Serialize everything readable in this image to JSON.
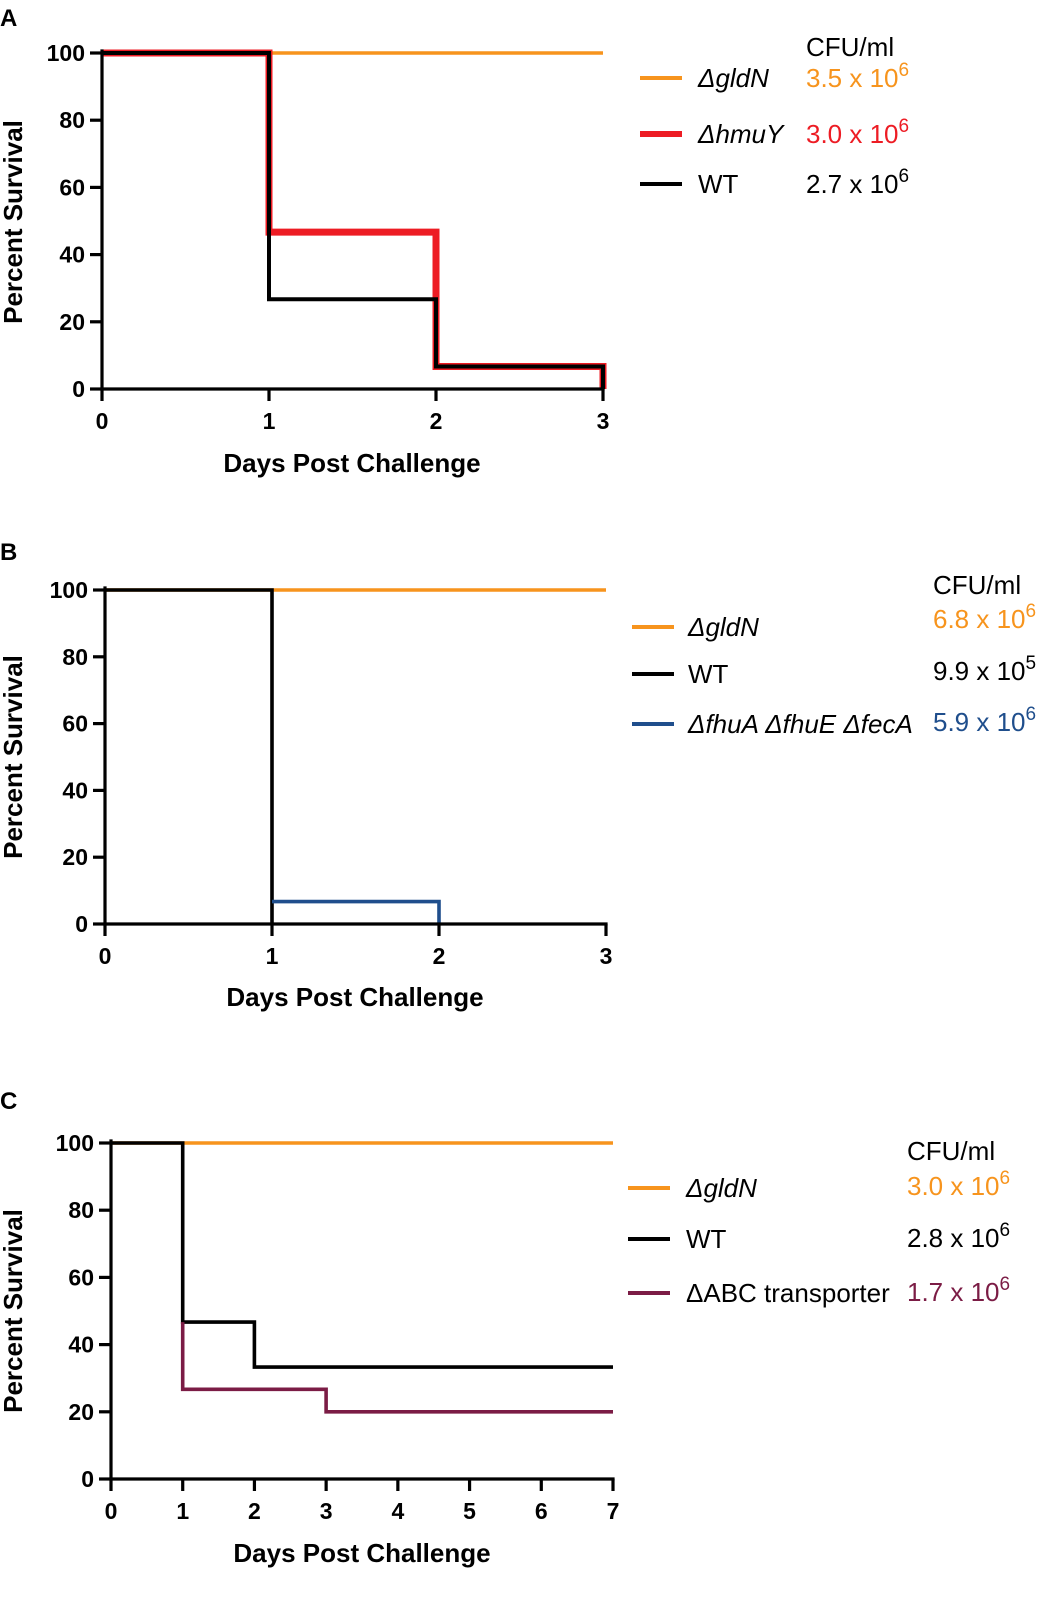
{
  "chart_data": [
    {
      "panel": "A",
      "type": "line",
      "subtype": "step-survival",
      "xlabel": "Days Post Challenge",
      "ylabel": "Percent Survival",
      "xlim": [
        0,
        3
      ],
      "ylim": [
        0,
        100
      ],
      "xticks": [
        "0",
        "1",
        "2",
        "3"
      ],
      "yticks": [
        "0",
        "20",
        "40",
        "60",
        "80",
        "100"
      ],
      "legend_header": "CFU/ml",
      "series": [
        {
          "name": "ΔgldN",
          "italic_part": "gldN",
          "cfu": "3.5 x 10",
          "cfu_exp": "6",
          "color": "#f7941d",
          "points": [
            [
              0,
              100
            ],
            [
              3,
              100
            ]
          ]
        },
        {
          "name": "ΔhmuY",
          "italic_part": "hmuY",
          "cfu": "3.0 x 10",
          "cfu_exp": "6",
          "color": "#ed1c24",
          "points": [
            [
              0,
              100
            ],
            [
              1,
              100
            ],
            [
              1,
              46.7
            ],
            [
              2,
              46.7
            ],
            [
              2,
              6.7
            ],
            [
              3,
              6.7
            ],
            [
              3,
              0
            ]
          ]
        },
        {
          "name": "WT",
          "italic_part": "",
          "cfu": "2.7 x 10",
          "cfu_exp": "6",
          "color": "#000000",
          "points": [
            [
              0,
              100
            ],
            [
              1,
              100
            ],
            [
              1,
              26.7
            ],
            [
              2,
              26.7
            ],
            [
              2,
              6.7
            ],
            [
              3,
              6.7
            ],
            [
              3,
              0
            ]
          ]
        }
      ]
    },
    {
      "panel": "B",
      "type": "line",
      "subtype": "step-survival",
      "xlabel": "Days Post Challenge",
      "ylabel": "Percent Survival",
      "xlim": [
        0,
        3
      ],
      "ylim": [
        0,
        100
      ],
      "xticks": [
        "0",
        "1",
        "2",
        "3"
      ],
      "yticks": [
        "0",
        "20",
        "40",
        "60",
        "80",
        "100"
      ],
      "legend_header": "CFU/ml",
      "series": [
        {
          "name": "ΔgldN",
          "italic_part": "gldN",
          "cfu": "6.8 x 10",
          "cfu_exp": "6",
          "color": "#f7941d",
          "points": [
            [
              0,
              100
            ],
            [
              3,
              100
            ]
          ]
        },
        {
          "name": "WT",
          "italic_part": "",
          "cfu": "9.9 x 10",
          "cfu_exp": "5",
          "color": "#000000",
          "points": [
            [
              0,
              100
            ],
            [
              1,
              100
            ],
            [
              1,
              0
            ]
          ]
        },
        {
          "name": "ΔfhuA ΔfhuE ΔfecA",
          "italic_part": "fhuA fhuE fecA",
          "cfu": "5.9 x 10",
          "cfu_exp": "6",
          "color": "#1f4e8c",
          "points": [
            [
              1,
              6.7
            ],
            [
              2,
              6.7
            ],
            [
              2,
              0
            ]
          ]
        }
      ]
    },
    {
      "panel": "C",
      "type": "line",
      "subtype": "step-survival",
      "xlabel": "Days Post Challenge",
      "ylabel": "Percent Survival",
      "xlim": [
        0,
        7
      ],
      "ylim": [
        0,
        100
      ],
      "xticks": [
        "0",
        "1",
        "2",
        "3",
        "4",
        "5",
        "6",
        "7"
      ],
      "yticks": [
        "0",
        "20",
        "40",
        "60",
        "80",
        "100"
      ],
      "legend_header": "CFU/ml",
      "series": [
        {
          "name": "ΔgldN",
          "italic_part": "gldN",
          "cfu": "3.0 x 10",
          "cfu_exp": "6",
          "color": "#f7941d",
          "points": [
            [
              0,
              100
            ],
            [
              7,
              100
            ]
          ]
        },
        {
          "name": "WT",
          "italic_part": "",
          "cfu": "2.8 x 10",
          "cfu_exp": "6",
          "color": "#000000",
          "points": [
            [
              0,
              100
            ],
            [
              1,
              100
            ],
            [
              1,
              46.7
            ],
            [
              2,
              46.7
            ],
            [
              2,
              33.3
            ],
            [
              7,
              33.3
            ]
          ]
        },
        {
          "name": "ΔABC transporter",
          "italic_part": "",
          "cfu": "1.7 x 10",
          "cfu_exp": "6",
          "color": "#7b1c45",
          "points": [
            [
              1,
              46.7
            ],
            [
              1,
              26.7
            ],
            [
              3,
              26.7
            ],
            [
              3,
              20
            ],
            [
              7,
              20
            ]
          ]
        }
      ]
    }
  ]
}
